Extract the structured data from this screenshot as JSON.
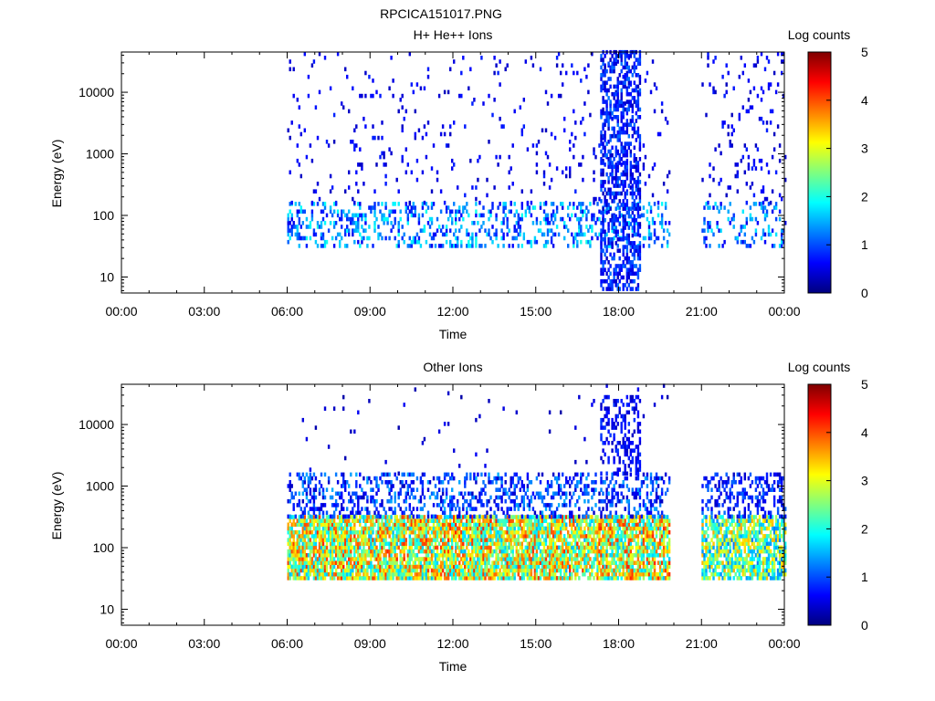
{
  "figure_title": "RPCICA151017.PNG",
  "colors": {
    "colormap": [
      "#00007f",
      "#0000ff",
      "#007fff",
      "#00ffff",
      "#7fff7f",
      "#ffff00",
      "#ff7f00",
      "#ff0000",
      "#7f0000"
    ]
  },
  "chart_data": [
    {
      "type": "heatmap",
      "title": "H+ He++ Ions",
      "xlabel": "Time",
      "ylabel": "Energy (eV)",
      "yscale": "log",
      "xlim": [
        "00:00",
        "00:00"
      ],
      "ylim": [
        5.5,
        45000
      ],
      "x_ticks": [
        "00:00",
        "03:00",
        "06:00",
        "09:00",
        "12:00",
        "15:00",
        "18:00",
        "21:00",
        "00:00"
      ],
      "y_ticks": [
        10,
        100,
        1000,
        10000
      ],
      "y_tick_labels": [
        "10",
        "100",
        "1000",
        "10000"
      ],
      "colorbar": {
        "label": "Log counts",
        "range": [
          0,
          5
        ],
        "ticks": [
          "0",
          "1",
          "2",
          "3",
          "4",
          "5"
        ]
      },
      "data_coverage": [
        [
          "06:00",
          "19:50"
        ],
        [
          "21:00",
          "24:00"
        ]
      ],
      "features": [
        {
          "time_range": [
            "06:00",
            "19:50"
          ],
          "energy_range": [
            30,
            150
          ],
          "log_counts": [
            0.5,
            2.0
          ],
          "density": 0.28
        },
        {
          "time_range": [
            "06:00",
            "19:50"
          ],
          "energy_range": [
            150,
            45000
          ],
          "log_counts": [
            0.3,
            0.8
          ],
          "density": 0.05
        },
        {
          "time_range": [
            "17:20",
            "18:45"
          ],
          "energy_range": [
            6,
            45000
          ],
          "log_counts": [
            0.3,
            1.2
          ],
          "density": 0.5
        },
        {
          "time_range": [
            "21:00",
            "24:00"
          ],
          "energy_range": [
            30,
            150
          ],
          "log_counts": [
            0.5,
            1.8
          ],
          "density": 0.22
        },
        {
          "time_range": [
            "21:00",
            "24:00"
          ],
          "energy_range": [
            150,
            45000
          ],
          "log_counts": [
            0.3,
            0.8
          ],
          "density": 0.08
        }
      ]
    },
    {
      "type": "heatmap",
      "title": "Other Ions",
      "xlabel": "Time",
      "ylabel": "Energy (eV)",
      "yscale": "log",
      "xlim": [
        "00:00",
        "00:00"
      ],
      "ylim": [
        5.5,
        45000
      ],
      "x_ticks": [
        "00:00",
        "03:00",
        "06:00",
        "09:00",
        "12:00",
        "15:00",
        "18:00",
        "21:00",
        "00:00"
      ],
      "y_ticks": [
        10,
        100,
        1000,
        10000
      ],
      "y_tick_labels": [
        "10",
        "100",
        "1000",
        "10000"
      ],
      "colorbar": {
        "label": "Log counts",
        "range": [
          0,
          5
        ],
        "ticks": [
          "0",
          "1",
          "2",
          "3",
          "4",
          "5"
        ]
      },
      "data_coverage": [
        [
          "06:00",
          "19:50"
        ],
        [
          "21:00",
          "24:00"
        ]
      ],
      "features": [
        {
          "time_range": [
            "06:00",
            "19:50"
          ],
          "energy_range": [
            30,
            300
          ],
          "log_counts": [
            1.5,
            4.2
          ],
          "density": 0.85
        },
        {
          "time_range": [
            "06:00",
            "19:50"
          ],
          "energy_range": [
            300,
            1500
          ],
          "log_counts": [
            0.3,
            1.5
          ],
          "density": 0.35
        },
        {
          "time_range": [
            "06:00",
            "19:50"
          ],
          "energy_range": [
            1500,
            45000
          ],
          "log_counts": [
            0.2,
            0.6
          ],
          "density": 0.01
        },
        {
          "time_range": [
            "17:20",
            "18:45"
          ],
          "energy_range": [
            1500,
            30000
          ],
          "log_counts": [
            0.3,
            0.9
          ],
          "density": 0.35
        },
        {
          "time_range": [
            "21:00",
            "24:00"
          ],
          "energy_range": [
            30,
            300
          ],
          "log_counts": [
            1.2,
            3.6
          ],
          "density": 0.75
        },
        {
          "time_range": [
            "21:00",
            "24:00"
          ],
          "energy_range": [
            300,
            1500
          ],
          "log_counts": [
            0.3,
            1.2
          ],
          "density": 0.3
        }
      ]
    }
  ]
}
